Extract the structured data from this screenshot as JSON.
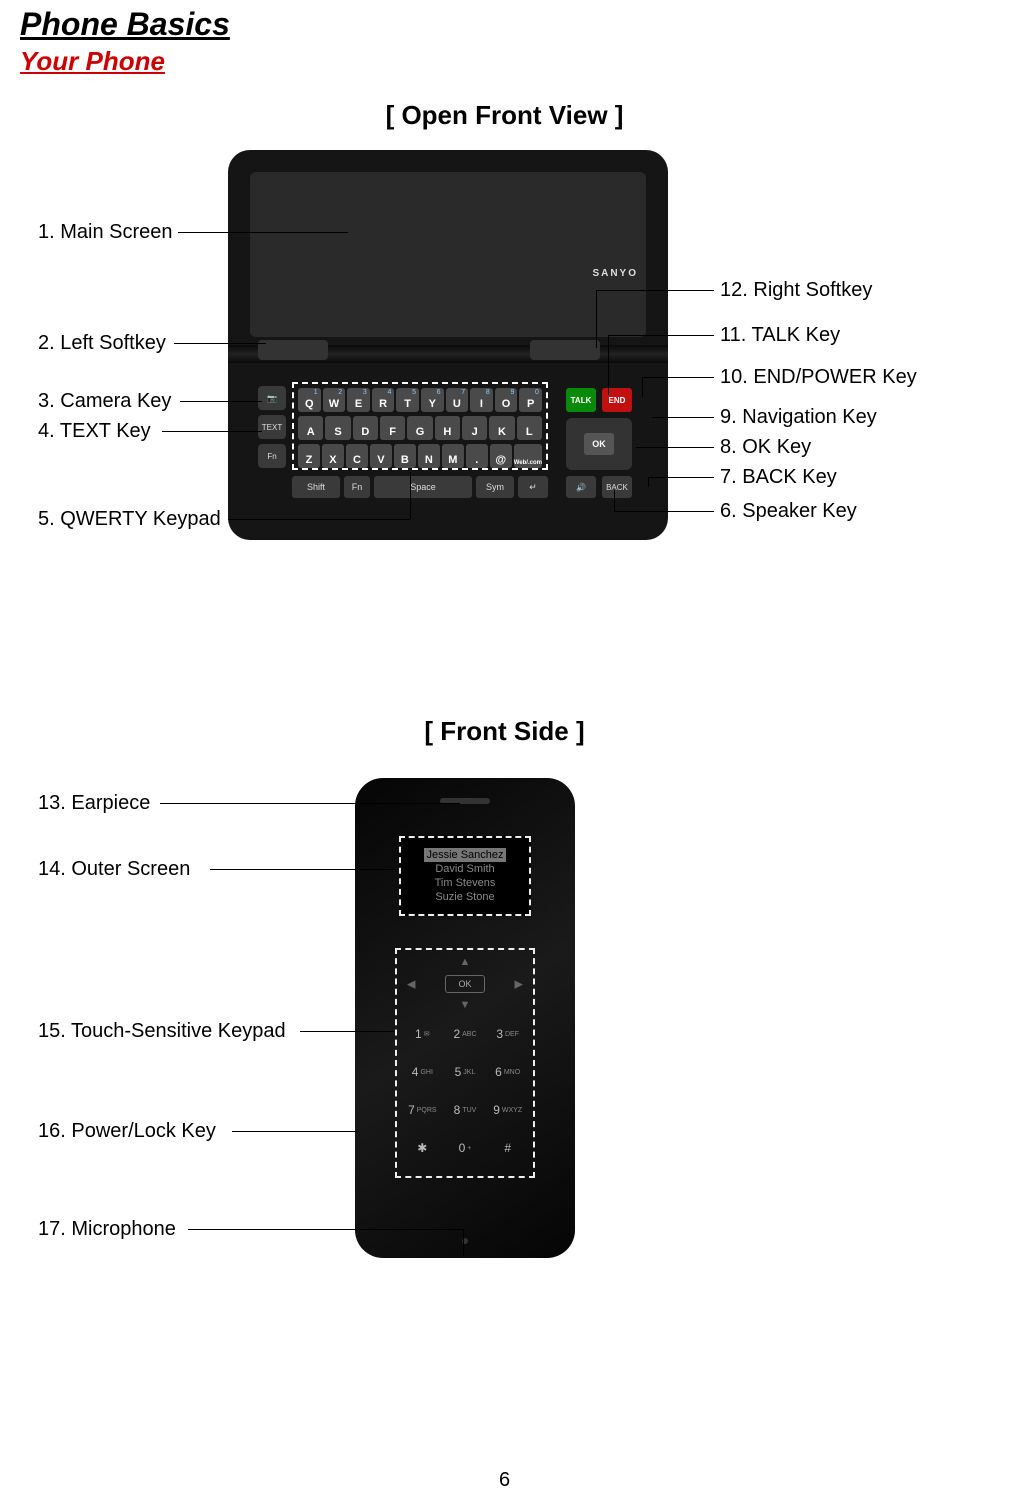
{
  "title": "Phone Basics",
  "subtitle": "Your Phone",
  "views": {
    "open": "[ Open Front View ]",
    "front": "[ Front Side ]"
  },
  "brand": "SANYO",
  "qwerty": {
    "row1": [
      "Q",
      "W",
      "E",
      "R",
      "T",
      "Y",
      "U",
      "I",
      "O",
      "P"
    ],
    "row1_nums": [
      "",
      "1",
      "2",
      "3",
      "4",
      "5",
      "6",
      "7",
      "8",
      "9",
      "0"
    ],
    "row2": [
      "A",
      "S",
      "D",
      "F",
      "G",
      "H",
      "J",
      "K",
      "L"
    ],
    "row3": [
      "Z",
      "X",
      "C",
      "V",
      "B",
      "N",
      "M",
      ".",
      "@"
    ],
    "row3_extra": "Web/.com",
    "bottom": {
      "shift": "Shift",
      "fn": "Fn",
      "space": "Space",
      "sym": "Sym",
      "enter": "↵"
    }
  },
  "keys": {
    "talk": "TALK",
    "end": "END",
    "ok": "OK",
    "back": "BACK",
    "speaker": "🔊",
    "text": "TEXT"
  },
  "outer_contacts": {
    "selected": "Jessie Sanchez",
    "others": [
      "David Smith",
      "Tim Stevens",
      "Suzie Stone"
    ]
  },
  "numpad": [
    {
      "n": "1",
      "s": "✉"
    },
    {
      "n": "2",
      "s": "ABC"
    },
    {
      "n": "3",
      "s": "DEF"
    },
    {
      "n": "4",
      "s": "GHI"
    },
    {
      "n": "5",
      "s": "JKL"
    },
    {
      "n": "6",
      "s": "MNO"
    },
    {
      "n": "7",
      "s": "PQRS"
    },
    {
      "n": "8",
      "s": "TUV"
    },
    {
      "n": "9",
      "s": "WXYZ"
    },
    {
      "n": "✱",
      "s": ""
    },
    {
      "n": "0",
      "s": "+"
    },
    {
      "n": "#",
      "s": ""
    }
  ],
  "front_ok": "OK",
  "callouts_open_left": [
    {
      "n": "1",
      "t": "Main Screen"
    },
    {
      "n": "2",
      "t": "Left Softkey"
    },
    {
      "n": "3",
      "t": "Camera Key"
    },
    {
      "n": "4",
      "t": "TEXT Key"
    },
    {
      "n": "5",
      "t": "QWERTY Keypad"
    }
  ],
  "callouts_open_right": [
    {
      "n": "12",
      "t": "Right Softkey"
    },
    {
      "n": "11",
      "t": "TALK Key"
    },
    {
      "n": "10",
      "t": "END/POWER Key"
    },
    {
      "n": "9",
      "t": "Navigation Key"
    },
    {
      "n": "8",
      "t": "OK Key"
    },
    {
      "n": "7",
      "t": "BACK Key"
    },
    {
      "n": "6",
      "t": "Speaker Key"
    }
  ],
  "callouts_front": [
    {
      "n": "13",
      "t": "Earpiece"
    },
    {
      "n": "14",
      "t": "Outer Screen"
    },
    {
      "n": "15",
      "t": "Touch-Sensitive Keypad"
    },
    {
      "n": "16",
      "t": "Power/Lock Key"
    },
    {
      "n": "17",
      "t": "Microphone"
    }
  ],
  "page_number": "6"
}
